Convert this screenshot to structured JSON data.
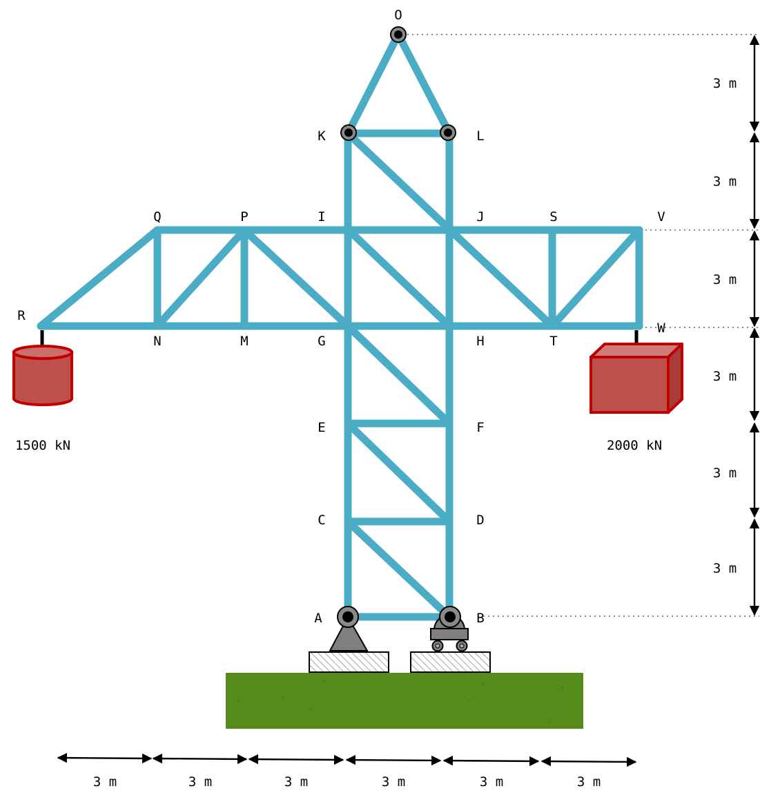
{
  "nodes": {
    "O": "O",
    "K": "K",
    "L": "L",
    "Q": "Q",
    "P": "P",
    "I": "I",
    "J": "J",
    "S": "S",
    "V": "V",
    "R": "R",
    "N": "N",
    "M": "M",
    "G": "G",
    "H": "H",
    "T": "T",
    "W": "W",
    "E": "E",
    "F": "F",
    "C": "C",
    "D": "D",
    "A": "A",
    "B": "B"
  },
  "loads": {
    "left": "1500 kN",
    "right": "2000 kN"
  },
  "dimensions": {
    "vertical": [
      "3 m",
      "3 m",
      "3 m",
      "3 m",
      "3 m",
      "3 m"
    ],
    "horizontal": [
      "3 m",
      "3 m",
      "3 m",
      "3 m",
      "3 m",
      "3 m"
    ]
  },
  "colors": {
    "member": "#4BACC6",
    "load": "#C0504D",
    "load_edge": "#C00000",
    "ground": "#558B1A",
    "support": "#7F7F7F"
  },
  "icons": {
    "pin_support": "pin-support-icon",
    "roller_support": "roller-support-icon",
    "left_load": "cylinder-weight-icon",
    "right_load": "box-weight-icon"
  }
}
